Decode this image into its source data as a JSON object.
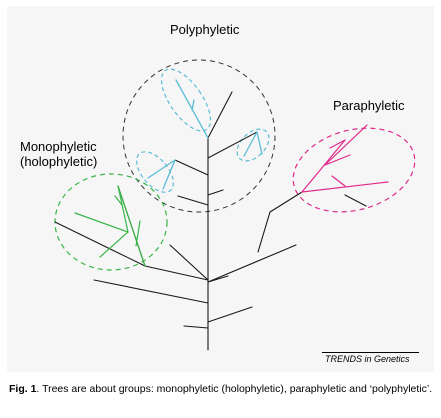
{
  "labels": {
    "polyphyletic": "Polyphyletic",
    "paraphyletic": "Paraphyletic",
    "monophyletic_line1": "Monophyletic",
    "monophyletic_line2": "(holophyletic)"
  },
  "source": "TRENDS in Genetics",
  "caption": {
    "fig_label": "Fig. 1",
    "text": ". Trees are about groups: monophyletic (holophyletic), paraphyletic and ‘polyphyletic’."
  },
  "colors": {
    "tree": "#1a1a1a",
    "monophyletic": "#3ab54a",
    "paraphyletic": "#e0298a",
    "polyphyletic_branches": "#5bbcd6",
    "polyphyletic_outline": "#333333",
    "panel": "#f6f6f6"
  }
}
